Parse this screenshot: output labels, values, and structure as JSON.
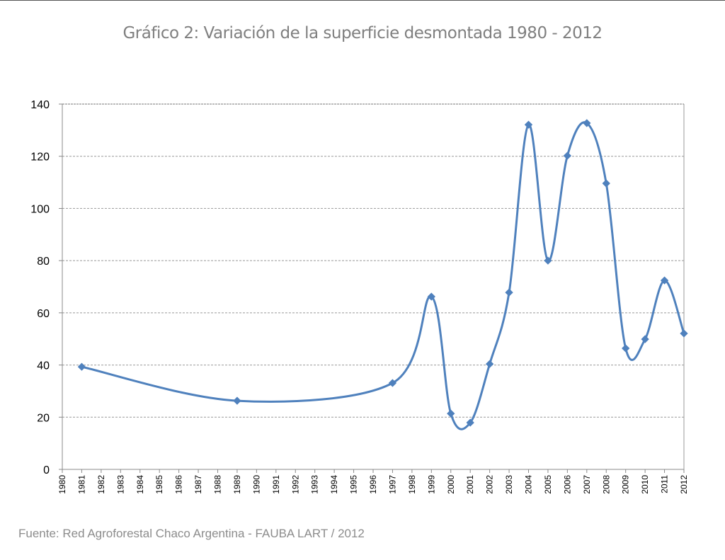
{
  "chart_data": {
    "type": "line",
    "title": "Gráfico 2: Variación de la superficie desmontada 1980  -  2012",
    "source": "Fuente: Red Agroforestal Chaco Argentina  -  FAUBA LART / 2012",
    "xlabel": "",
    "ylabel": "",
    "xlim": [
      1980,
      2012
    ],
    "ylim": [
      0,
      140
    ],
    "yticks": [
      0,
      20,
      40,
      60,
      80,
      100,
      120,
      140
    ],
    "xticks": [
      1980,
      1981,
      1982,
      1983,
      1984,
      1985,
      1986,
      1987,
      1988,
      1989,
      1990,
      1991,
      1992,
      1993,
      1994,
      1995,
      1996,
      1997,
      1998,
      1999,
      2000,
      2001,
      2002,
      2003,
      2004,
      2005,
      2006,
      2007,
      2008,
      2009,
      2010,
      2011,
      2012
    ],
    "grid": "horizontal dashed",
    "line_color": "#4f81bd",
    "series": [
      {
        "name": "Superficie desmontada",
        "x": [
          1981,
          1989,
          1997,
          1999,
          2000,
          2001,
          2002,
          2003,
          2004,
          2005,
          2006,
          2007,
          2008,
          2009,
          2010,
          2011,
          2012
        ],
        "y": [
          39.3,
          26.3,
          33.1,
          66.2,
          21.4,
          17.9,
          40.4,
          67.8,
          132.1,
          80.0,
          120.2,
          132.7,
          109.6,
          46.4,
          49.9,
          72.4,
          52.1
        ]
      }
    ]
  }
}
